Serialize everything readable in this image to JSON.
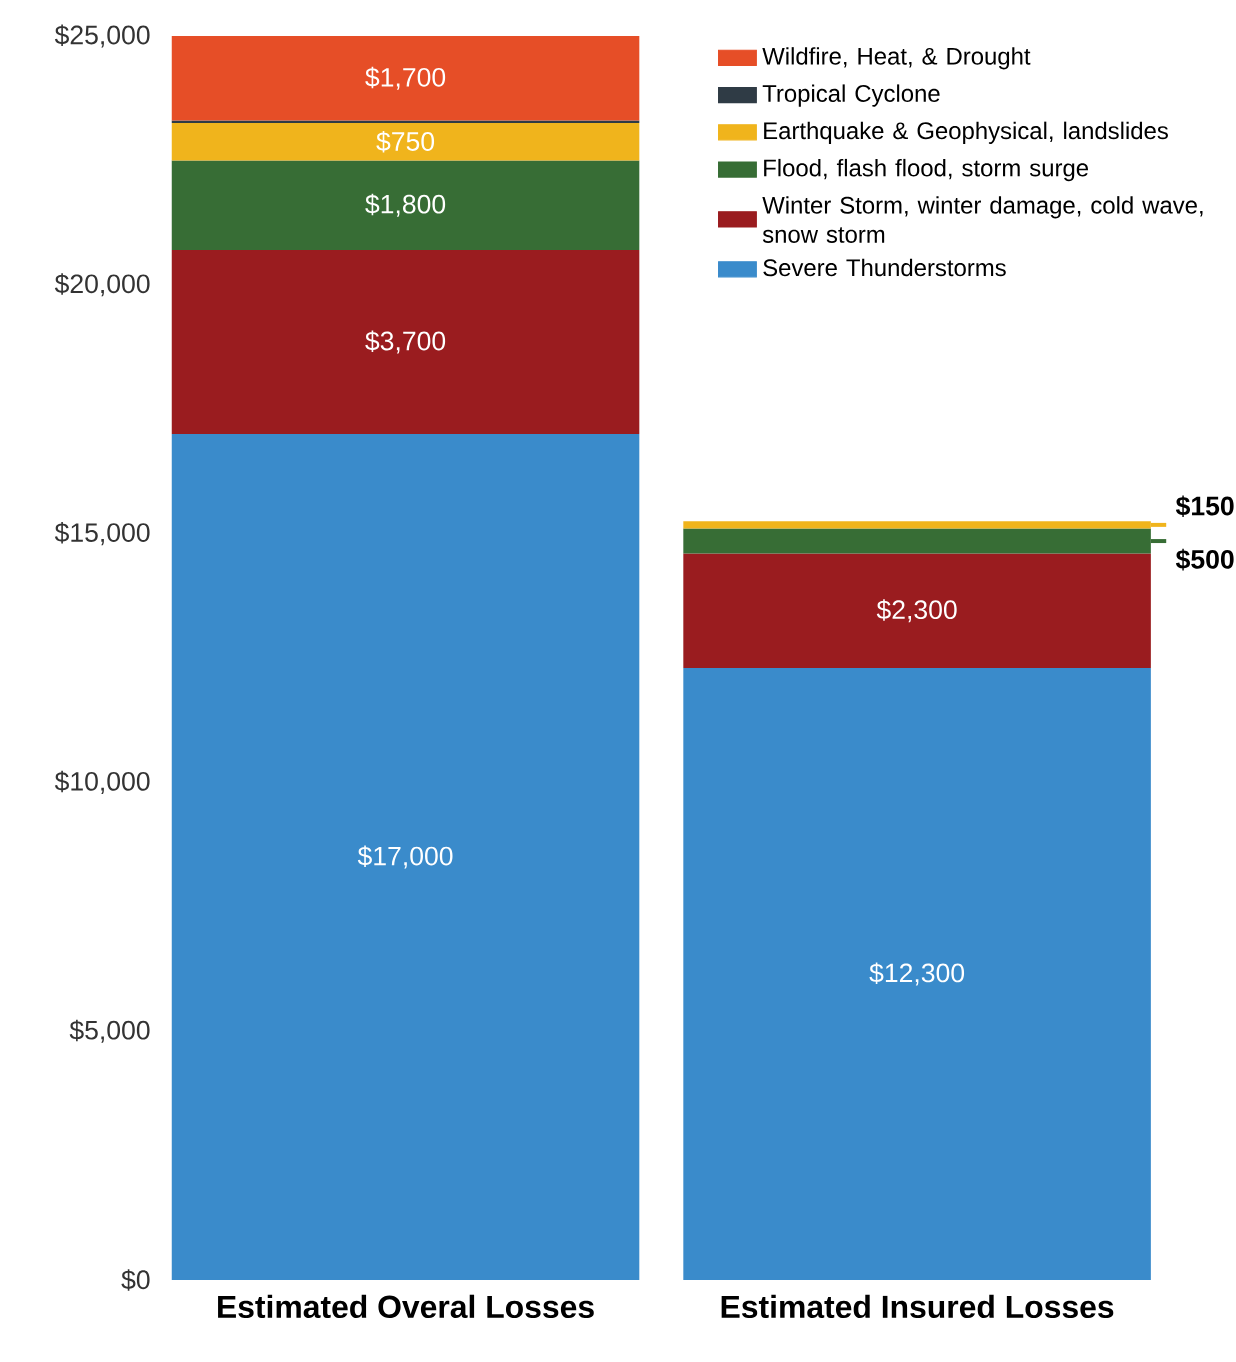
{
  "chart_data": {
    "type": "bar",
    "stacked": true,
    "categories": [
      "Estimated Overal Losses",
      "Estimated Insured Losses"
    ],
    "ylim": [
      0,
      25000
    ],
    "yticks": [
      {
        "value": 0,
        "label": "$0"
      },
      {
        "value": 5000,
        "label": "$5,000"
      },
      {
        "value": 10000,
        "label": "$10,000"
      },
      {
        "value": 15000,
        "label": "$15,000"
      },
      {
        "value": 20000,
        "label": "$20,000"
      },
      {
        "value": 25000,
        "label": "$25,000"
      }
    ],
    "legend": "top right",
    "grid": false,
    "series": [
      {
        "name": "Severe Thunderstorms",
        "color": "#3a8bcb",
        "values": [
          17000,
          12300
        ],
        "value_labels": [
          "$17,000",
          "$12,300"
        ]
      },
      {
        "name": "Winter Storm, winter damage, cold wave, snow storm",
        "color": "#9a1c1f",
        "values": [
          3700,
          2300
        ],
        "value_labels": [
          "$3,700",
          "$2,300"
        ]
      },
      {
        "name": "Flood, flash flood, storm surge",
        "color": "#376d35",
        "values": [
          1800,
          500
        ],
        "value_labels": [
          "$1,800",
          "$500"
        ]
      },
      {
        "name": "Earthquake & Geophysical, landslides",
        "color": "#f0b41c",
        "values": [
          750,
          150
        ],
        "value_labels": [
          "$750",
          "$150"
        ]
      },
      {
        "name": "Tropical Cyclone",
        "color": "#2f3b45",
        "values": [
          50,
          null
        ],
        "value_labels": [
          null,
          null
        ]
      },
      {
        "name": "Wildfire, Heat, & Drought",
        "color": "#e64e27",
        "values": [
          1700,
          null
        ],
        "value_labels": [
          "$1,700",
          null
        ]
      }
    ]
  }
}
